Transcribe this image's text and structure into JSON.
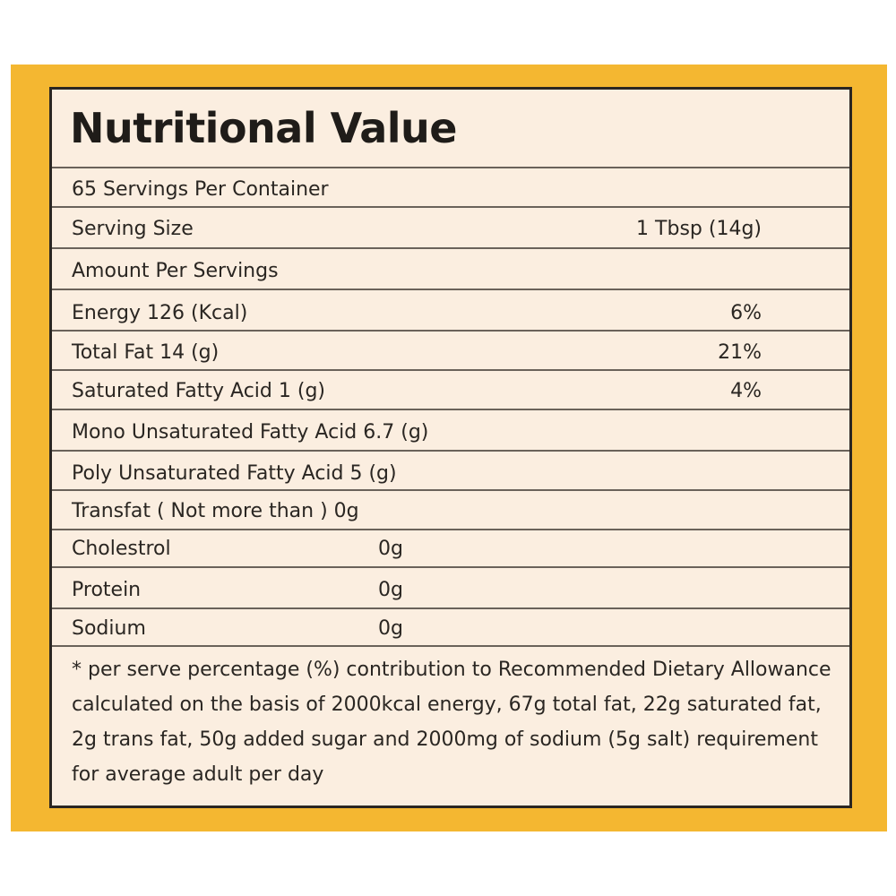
{
  "title": "Nutritional Value",
  "rows": [
    {
      "label": "65 Servings Per Container",
      "value": ""
    },
    {
      "label": "Serving Size",
      "value": "1 Tbsp (14g)"
    },
    {
      "label": "Amount Per Servings",
      "value": ""
    },
    {
      "label": "Energy 126 (Kcal)",
      "value": "6%"
    },
    {
      "label": "Total Fat 14 (g)",
      "value": "21%"
    },
    {
      "label": "Saturated Fatty Acid 1 (g)",
      "value": "4%"
    },
    {
      "label": "Mono Unsaturated Fatty Acid 6.7 (g)",
      "value": ""
    },
    {
      "label": "Poly Unsaturated Fatty Acid 5 (g)",
      "value": ""
    },
    {
      "label": "Transfat ( Not more than ) 0g",
      "value": ""
    },
    {
      "label": "Cholestrol",
      "value": "0g"
    },
    {
      "label": "Protein",
      "value": "0g"
    },
    {
      "label": "Sodium",
      "value": "0g"
    }
  ],
  "footnote": "* per serve percentage (%) contribution to Recommended Dietary Allowance calculated on the basis of 2000kcal energy, 67g total fat, 22g saturated fat, 2g trans fat, 50g added sugar and 2000mg of sodium (5g salt) requirement for average adult per day",
  "colors": {
    "frame": "#f4b731",
    "panel": "#fbeee0",
    "text": "#2a2622"
  }
}
